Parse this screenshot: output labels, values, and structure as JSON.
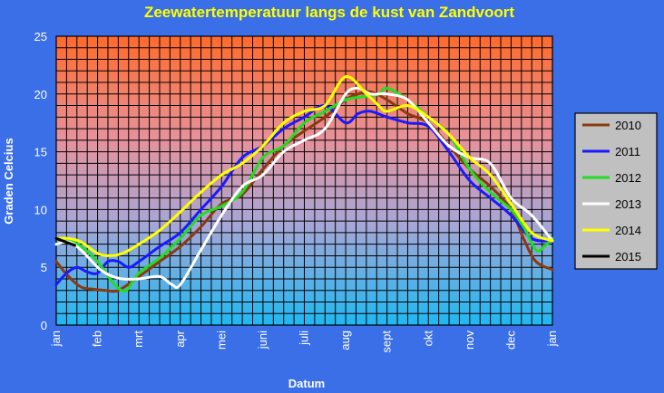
{
  "chart_data": {
    "type": "line",
    "title": "Zeewatertemperatuur langs de kust van Zandvoort",
    "xlabel": "Datum",
    "ylabel": "Graden Celcius",
    "ylim": [
      0,
      25
    ],
    "yticks": [
      0,
      5,
      10,
      15,
      20,
      25
    ],
    "categories": [
      "jan",
      "feb",
      "mrt",
      "apr",
      "mei",
      "juni",
      "juli",
      "aug",
      "sept",
      "okt",
      "nov",
      "dec",
      "jan"
    ],
    "grid": true,
    "legend_position": "right",
    "series": [
      {
        "name": "2010",
        "color": "#8b3a0f",
        "x": [
          0,
          0.3,
          0.6,
          0.9,
          1.2,
          1.5,
          2.0,
          2.5,
          3.0,
          3.5,
          4.0,
          4.5,
          5.0,
          5.5,
          6.0,
          6.5,
          7.0,
          7.3,
          7.6,
          8.0,
          8.5,
          9.0,
          9.5,
          10.0,
          10.5,
          11.0,
          11.3,
          11.6,
          12.0
        ],
        "values": [
          5.5,
          4.2,
          3.3,
          3.1,
          3.0,
          3.0,
          4.2,
          5.5,
          6.8,
          8.5,
          10.5,
          11.3,
          13.5,
          15.5,
          16.8,
          18.0,
          19.5,
          20.0,
          20.2,
          19.5,
          18.3,
          17.5,
          15.5,
          13.5,
          12.0,
          10.0,
          7.5,
          5.5,
          4.8
        ]
      },
      {
        "name": "2011",
        "color": "#1a1aff",
        "x": [
          0,
          0.25,
          0.5,
          0.75,
          1.0,
          1.25,
          1.5,
          1.75,
          2.0,
          2.5,
          3.0,
          3.5,
          4.0,
          4.5,
          5.0,
          5.5,
          6.0,
          6.5,
          7.0,
          7.3,
          7.6,
          8.0,
          8.5,
          9.0,
          9.5,
          10.0,
          10.5,
          11.0,
          11.5,
          12.0
        ],
        "values": [
          3.5,
          4.5,
          5.0,
          4.6,
          4.5,
          5.5,
          5.5,
          5.0,
          5.5,
          6.8,
          8.0,
          10.0,
          12.0,
          14.5,
          15.5,
          17.0,
          18.0,
          19.0,
          17.5,
          18.3,
          18.5,
          18.0,
          17.5,
          17.2,
          15.0,
          12.5,
          11.0,
          9.5,
          7.5,
          7.3
        ]
      },
      {
        "name": "2012",
        "color": "#22dd22",
        "x": [
          0,
          0.3,
          0.6,
          1.0,
          1.3,
          1.5,
          1.7,
          2.0,
          2.5,
          3.0,
          3.5,
          4.0,
          4.5,
          5.0,
          5.5,
          6.0,
          6.5,
          7.0,
          7.5,
          7.8,
          8.0,
          8.5,
          9.0,
          9.5,
          10.0,
          10.5,
          11.0,
          11.3,
          11.6,
          11.8,
          12.0
        ],
        "values": [
          7.0,
          7.3,
          6.8,
          5.5,
          4.0,
          3.2,
          3.0,
          4.5,
          5.8,
          7.5,
          9.5,
          10.3,
          11.5,
          14.5,
          15.5,
          17.5,
          18.5,
          19.5,
          19.8,
          20.0,
          20.5,
          19.5,
          18.0,
          16.5,
          13.5,
          11.5,
          10.0,
          8.5,
          6.5,
          6.8,
          7.5
        ]
      },
      {
        "name": "2013",
        "color": "#ffffff",
        "x": [
          0,
          0.3,
          0.6,
          1.0,
          1.3,
          1.6,
          2.0,
          2.5,
          2.8,
          3.0,
          3.5,
          4.0,
          4.5,
          5.0,
          5.5,
          6.0,
          6.5,
          7.0,
          7.3,
          7.6,
          8.0,
          8.5,
          9.0,
          9.5,
          10.0,
          10.5,
          11.0,
          11.5,
          12.0
        ],
        "values": [
          7.0,
          7.2,
          6.5,
          5.0,
          4.3,
          4.0,
          4.0,
          4.2,
          3.5,
          3.5,
          6.5,
          9.5,
          12.0,
          13.0,
          15.0,
          16.0,
          17.0,
          20.0,
          20.5,
          20.0,
          20.0,
          19.5,
          17.5,
          15.5,
          14.5,
          14.0,
          11.0,
          9.5,
          7.3
        ]
      },
      {
        "name": "2014",
        "color": "#ffff00",
        "x": [
          0,
          0.3,
          0.6,
          1.0,
          1.3,
          1.6,
          2.0,
          2.5,
          3.0,
          3.5,
          4.0,
          4.5,
          5.0,
          5.5,
          6.0,
          6.5,
          7.0,
          7.5,
          7.8,
          8.0,
          8.5,
          9.0,
          9.5,
          10.0,
          10.5,
          11.0,
          11.5,
          12.0
        ],
        "values": [
          7.5,
          7.5,
          7.2,
          6.2,
          6.0,
          6.2,
          7.0,
          8.2,
          9.8,
          11.5,
          13.0,
          14.0,
          15.5,
          17.5,
          18.5,
          19.0,
          21.5,
          20.0,
          19.0,
          18.5,
          19.0,
          18.0,
          16.5,
          14.5,
          13.0,
          10.5,
          8.0,
          7.3
        ]
      },
      {
        "name": "2015",
        "color": "#000000",
        "x": [
          0,
          0.15,
          0.3,
          0.45
        ],
        "values": [
          7.5,
          7.3,
          7.1,
          6.9
        ]
      }
    ]
  }
}
